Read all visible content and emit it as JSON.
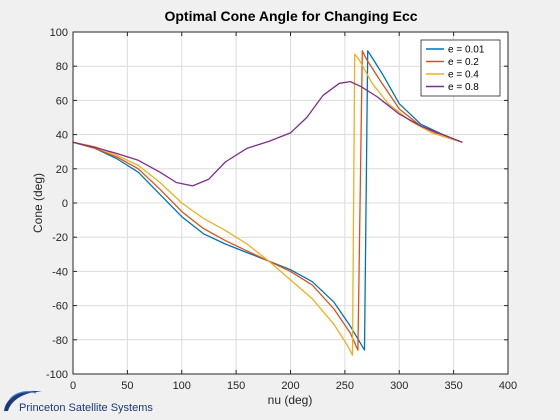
{
  "chart_data": {
    "type": "line",
    "title": "Optimal Cone Angle for Changing Ecc",
    "xlabel": "nu (deg)",
    "ylabel": "Cone (deg)",
    "xlim": [
      0,
      400
    ],
    "ylim": [
      -100,
      100
    ],
    "xticks": [
      0,
      50,
      100,
      150,
      200,
      250,
      300,
      350,
      400
    ],
    "yticks": [
      -100,
      -80,
      -60,
      -40,
      -20,
      0,
      20,
      40,
      60,
      80,
      100
    ],
    "grid": true,
    "legend_position": "top-right",
    "series": [
      {
        "name": "e = 0.01",
        "color": "#0072BD",
        "points": [
          [
            0,
            35.5
          ],
          [
            20,
            32
          ],
          [
            40,
            26
          ],
          [
            60,
            18
          ],
          [
            80,
            5
          ],
          [
            100,
            -8
          ],
          [
            120,
            -18
          ],
          [
            140,
            -24
          ],
          [
            160,
            -29
          ],
          [
            180,
            -34
          ],
          [
            200,
            -39
          ],
          [
            220,
            -46
          ],
          [
            240,
            -58
          ],
          [
            255,
            -72
          ],
          [
            268,
            -86
          ],
          [
            271,
            89
          ],
          [
            275,
            85
          ],
          [
            285,
            75
          ],
          [
            300,
            58
          ],
          [
            320,
            46
          ],
          [
            340,
            40
          ],
          [
            358,
            35.5
          ]
        ]
      },
      {
        "name": "e = 0.2",
        "color": "#D95319",
        "points": [
          [
            0,
            35.5
          ],
          [
            20,
            32
          ],
          [
            40,
            27
          ],
          [
            60,
            20
          ],
          [
            80,
            8
          ],
          [
            100,
            -5
          ],
          [
            120,
            -15
          ],
          [
            140,
            -22
          ],
          [
            160,
            -28
          ],
          [
            180,
            -34
          ],
          [
            200,
            -40
          ],
          [
            220,
            -48
          ],
          [
            240,
            -62
          ],
          [
            255,
            -76
          ],
          [
            262,
            -86
          ],
          [
            266,
            89
          ],
          [
            270,
            84
          ],
          [
            282,
            72
          ],
          [
            300,
            55
          ],
          [
            320,
            45
          ],
          [
            340,
            39
          ],
          [
            358,
            35.5
          ]
        ]
      },
      {
        "name": "e = 0.4",
        "color": "#EDB120",
        "points": [
          [
            0,
            35.5
          ],
          [
            20,
            33
          ],
          [
            40,
            28
          ],
          [
            60,
            22
          ],
          [
            80,
            12
          ],
          [
            100,
            0
          ],
          [
            120,
            -9
          ],
          [
            140,
            -16
          ],
          [
            160,
            -24
          ],
          [
            180,
            -34
          ],
          [
            200,
            -45
          ],
          [
            220,
            -56
          ],
          [
            240,
            -71
          ],
          [
            252,
            -83
          ],
          [
            257,
            -89
          ],
          [
            259,
            87
          ],
          [
            263,
            84
          ],
          [
            275,
            70
          ],
          [
            290,
            58
          ],
          [
            310,
            48
          ],
          [
            330,
            41
          ],
          [
            358,
            35.5
          ]
        ]
      },
      {
        "name": "e = 0.8",
        "color": "#7E2F8E",
        "points": [
          [
            0,
            35.5
          ],
          [
            20,
            32.5
          ],
          [
            40,
            29
          ],
          [
            60,
            25
          ],
          [
            80,
            18
          ],
          [
            95,
            12
          ],
          [
            110,
            10
          ],
          [
            125,
            14
          ],
          [
            140,
            24
          ],
          [
            160,
            32
          ],
          [
            180,
            36
          ],
          [
            200,
            41
          ],
          [
            215,
            50
          ],
          [
            230,
            63
          ],
          [
            245,
            70
          ],
          [
            255,
            71
          ],
          [
            265,
            68
          ],
          [
            280,
            62
          ],
          [
            300,
            52
          ],
          [
            320,
            45
          ],
          [
            340,
            40
          ],
          [
            358,
            35.5
          ]
        ]
      }
    ]
  },
  "footer": {
    "logo_text": "Princeton Satellite Systems"
  }
}
